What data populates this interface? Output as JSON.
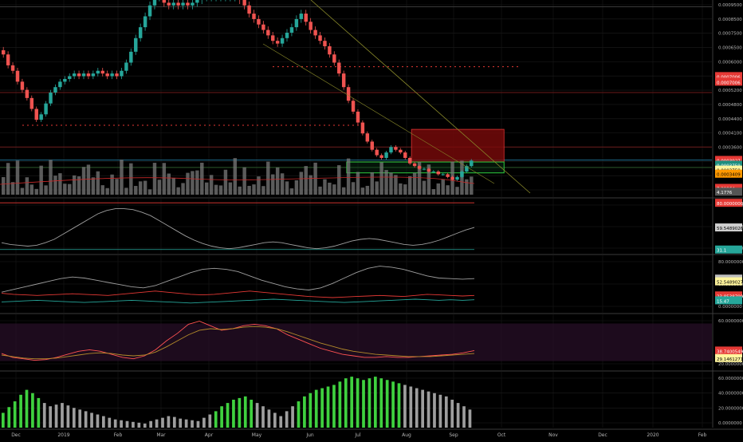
{
  "colors": {
    "background": "#000000",
    "bull": "#26a69a",
    "bear": "#ef5350",
    "grid": "#1c1c1c",
    "volume": "#7a7a7a",
    "divider": "#3a3a3a",
    "axis_text": "#b5b5b5",
    "tag_text": "#000000",
    "tag_text_light": "#ffffff",
    "trendline": "#8a8a2a",
    "resistance_box_fill": "#7a0a0a",
    "resistance_box_border": "#d33",
    "support_box_border": "#2ecc40"
  },
  "chart_data": [
    {
      "name": "price",
      "type": "candlestick",
      "x_tick_labels": [
        "Dec",
        "2019",
        "Feb",
        "Mar",
        "Apr",
        "May",
        "Jun",
        "Jul",
        "Aug",
        "Sep",
        "Oct",
        "Nov",
        "Dec",
        "2020",
        "Feb"
      ],
      "y_tick_labels": [
        "0.0009500",
        "0.0008500",
        "0.0007500",
        "0.0006500",
        "0.0006000",
        "0.0005600",
        "0.0005200",
        "0.0004800",
        "0.0004400",
        "0.0004100",
        "0.0003600",
        "0.0003250",
        "0.0003000",
        "0.0002750"
      ],
      "ylim": [
        0.000265,
        0.00098
      ],
      "price_tags": [
        {
          "value": "0.0007006",
          "y": 0.0007006,
          "bg": "#e53935",
          "fg": "#ffffff"
        },
        {
          "value": "0.0007006",
          "y": 0.00068,
          "bg": "#e53935",
          "fg": "#ffffff"
        },
        {
          "value": "0.0003927",
          "y": 0.0003927,
          "bg": "#e53935",
          "fg": "#ffffff"
        },
        {
          "value": "0.0003759",
          "y": 0.000375,
          "bg": "#1e8e7e",
          "fg": "#ffffff"
        },
        {
          "value": "0.0003759",
          "y": 0.000357,
          "bg": "#fff59d",
          "fg": "#000000"
        },
        {
          "value": "0.0003409",
          "y": 0.000342,
          "bg": "#ff9800",
          "fg": "#000000"
        },
        {
          "value": "7.29964",
          "y": 0.00029,
          "bg": "#e53935",
          "fg": "#ffffff"
        },
        {
          "value": "4.1776",
          "y": 0.000276,
          "bg": "#555555",
          "fg": "#ffffff"
        }
      ],
      "horizontal_levels": [
        {
          "y": 0.000955,
          "style": "solid",
          "color": "#3a3a3a"
        },
        {
          "y": 0.000735,
          "style": "dotted",
          "color": "#e53935"
        },
        {
          "y": 0.00064,
          "style": "solid",
          "color": "#6b1a1a"
        },
        {
          "y": 0.00052,
          "style": "dotted",
          "color": "#e53935"
        },
        {
          "y": 0.00044,
          "style": "solid",
          "color": "#6b1a1a"
        },
        {
          "y": 0.000392,
          "style": "solid",
          "color": "#1e6e8e"
        },
        {
          "y": 0.000365,
          "style": "solid",
          "color": "#2a5a2a"
        }
      ],
      "zones": [
        {
          "kind": "resistance",
          "x_from": 0.578,
          "x_to": 0.708,
          "y_from": 0.000385,
          "y_to": 0.000505
        },
        {
          "kind": "support",
          "x_from": 0.487,
          "x_to": 0.708,
          "y_from": 0.000345,
          "y_to": 0.000385
        }
      ],
      "candles_close_series": [
        0.00078,
        0.00074,
        0.00072,
        0.00068,
        0.00065,
        0.00062,
        0.00058,
        0.00054,
        0.00056,
        0.0006,
        0.00064,
        0.00066,
        0.00068,
        0.00069,
        0.0007,
        0.00071,
        0.0007,
        0.00071,
        0.0007,
        0.00071,
        0.00072,
        0.00071,
        0.0007,
        0.00071,
        0.0007,
        0.00072,
        0.00075,
        0.00079,
        0.00084,
        0.00088,
        0.00092,
        0.00096,
        0.00099,
        0.00099,
        0.00097,
        0.00096,
        0.00097,
        0.00096,
        0.00097,
        0.00096,
        0.00097,
        0.00098,
        0.00099,
        0.00099,
        0.00099,
        0.00099,
        0.00099,
        0.00099,
        0.00099,
        0.00099,
        0.00098,
        0.00096,
        0.00093,
        0.00091,
        0.00089,
        0.00087,
        0.00085,
        0.00083,
        0.00082,
        0.00084,
        0.00086,
        0.00088,
        0.00091,
        0.00093,
        0.0009,
        0.00087,
        0.00085,
        0.00083,
        0.00081,
        0.00078,
        0.00075,
        0.00071,
        0.00066,
        0.00061,
        0.00057,
        0.00053,
        0.00049,
        0.00046,
        0.00043,
        0.00041,
        0.0004,
        0.00042,
        0.00044,
        0.00043,
        0.00042,
        0.0004,
        0.00038,
        0.00037,
        0.00036,
        0.00036,
        0.00035,
        0.00035,
        0.00034,
        0.00034,
        0.00033,
        0.00032,
        0.00033,
        0.00035,
        0.00037,
        0.00039
      ]
    },
    {
      "name": "oscillator-1",
      "type": "line",
      "y_tick_labels": [
        "80.0000000",
        "60.0000000",
        "40.0000000"
      ],
      "ylim": [
        30,
        92
      ],
      "price_tags": [
        {
          "value": "80.0000000",
          "y": 89,
          "bg": "#e53935",
          "fg": "#ffffff"
        },
        {
          "value": "59.5489026",
          "y": 60,
          "bg": "#cfcfcf",
          "fg": "#000000"
        },
        {
          "value": "31.1",
          "y": 34,
          "bg": "#26a69a",
          "fg": "#ffffff"
        }
      ],
      "series": [
        {
          "name": "osc",
          "color": "#9e9e9e",
          "values": [
            42,
            40,
            39,
            38,
            39,
            42,
            46,
            52,
            58,
            64,
            70,
            76,
            80,
            82,
            82,
            81,
            78,
            74,
            68,
            62,
            56,
            50,
            45,
            41,
            38,
            36,
            35,
            36,
            38,
            40,
            42,
            43,
            42,
            40,
            38,
            36,
            35,
            36,
            38,
            41,
            44,
            46,
            47,
            46,
            44,
            42,
            40,
            39,
            40,
            42,
            45,
            49,
            53,
            57,
            60
          ]
        }
      ]
    },
    {
      "name": "oscillator-2",
      "type": "line",
      "y_tick_labels": [
        "80.0000000",
        "60.0000000",
        "0.0000000"
      ],
      "ylim": [
        -5,
        95
      ],
      "price_tags": [
        {
          "value": "55.0127167",
          "y": 55,
          "bg": "#bdbdbd",
          "fg": "#000000"
        },
        {
          "value": "52.5489027",
          "y": 50,
          "bg": "#fff59d",
          "fg": "#000000"
        },
        {
          "value": "23.8538799",
          "y": 24,
          "bg": "#e53935",
          "fg": "#ffffff"
        },
        {
          "value": "15.47",
          "y": 15,
          "bg": "#26a69a",
          "fg": "#ffffff"
        }
      ],
      "series": [
        {
          "name": "a",
          "color": "#9e9e9e",
          "values": [
            30,
            35,
            40,
            45,
            50,
            55,
            58,
            56,
            52,
            48,
            44,
            40,
            38,
            42,
            50,
            58,
            66,
            72,
            74,
            72,
            68,
            60,
            52,
            46,
            40,
            36,
            34,
            38,
            46,
            56,
            66,
            74,
            78,
            76,
            72,
            66,
            60,
            56,
            55,
            54,
            55
          ]
        },
        {
          "name": "b",
          "color": "#e53935",
          "values": [
            28,
            26,
            25,
            24,
            25,
            26,
            27,
            26,
            25,
            24,
            26,
            28,
            30,
            32,
            30,
            28,
            26,
            25,
            26,
            28,
            30,
            32,
            30,
            28,
            26,
            24,
            22,
            21,
            20,
            21,
            22,
            23,
            24,
            23,
            22,
            24,
            26,
            25,
            24,
            23,
            24
          ]
        },
        {
          "name": "c",
          "color": "#26a69a",
          "values": [
            12,
            13,
            14,
            15,
            14,
            13,
            12,
            11,
            12,
            13,
            14,
            15,
            14,
            13,
            12,
            11,
            10,
            11,
            12,
            13,
            14,
            15,
            16,
            17,
            16,
            15,
            14,
            13,
            12,
            11,
            12,
            13,
            14,
            15,
            16,
            17,
            16,
            15,
            16,
            15,
            16
          ]
        }
      ]
    },
    {
      "name": "oscillator-3",
      "type": "line",
      "y_tick_labels": [
        "60.0000000",
        "20.0000000"
      ],
      "ylim": [
        15,
        85
      ],
      "price_tags": [
        {
          "value": "38.7400549",
          "y": 39,
          "bg": "#e53935",
          "fg": "#ffffff"
        },
        {
          "value": "29.1461271",
          "y": 29,
          "bg": "#fff59d",
          "fg": "#000000"
        }
      ],
      "series": [
        {
          "name": "rsi",
          "color": "#ff5252",
          "values": [
            35,
            30,
            28,
            26,
            27,
            30,
            34,
            38,
            40,
            38,
            34,
            30,
            28,
            32,
            40,
            52,
            62,
            74,
            78,
            72,
            66,
            68,
            72,
            74,
            72,
            68,
            60,
            54,
            48,
            42,
            38,
            34,
            32,
            30,
            30,
            31,
            30,
            30,
            31,
            32,
            33,
            34,
            36,
            39
          ]
        },
        {
          "name": "sig",
          "color": "#b38a2a",
          "values": [
            33,
            31,
            29,
            28,
            28,
            29,
            31,
            33,
            35,
            36,
            35,
            33,
            32,
            33,
            37,
            44,
            52,
            60,
            66,
            68,
            67,
            68,
            70,
            71,
            70,
            68,
            64,
            59,
            54,
            49,
            45,
            41,
            38,
            36,
            34,
            33,
            32,
            31,
            31,
            31,
            32,
            33,
            34,
            35
          ]
        }
      ]
    },
    {
      "name": "histogram",
      "type": "bar",
      "y_tick_labels": [
        "60.0000000",
        "40.0000000",
        "20.0000000",
        "0.0000000"
      ],
      "ylim": [
        0,
        66
      ],
      "values": [
        18,
        25,
        32,
        40,
        46,
        42,
        36,
        30,
        26,
        28,
        30,
        27,
        24,
        22,
        20,
        18,
        16,
        14,
        12,
        10,
        9,
        8,
        7,
        6,
        5,
        8,
        10,
        12,
        14,
        13,
        11,
        10,
        9,
        8,
        12,
        16,
        20,
        26,
        30,
        34,
        36,
        38,
        34,
        30,
        26,
        22,
        18,
        14,
        20,
        26,
        32,
        38,
        42,
        46,
        48,
        50,
        52,
        56,
        60,
        62,
        60,
        58,
        60,
        62,
        60,
        58,
        56,
        54,
        52,
        50,
        48,
        46,
        44,
        42,
        40,
        38,
        34,
        30,
        26,
        22
      ],
      "green_indices": [
        0,
        1,
        2,
        3,
        4,
        5,
        6,
        36,
        37,
        38,
        39,
        40,
        41,
        42,
        50,
        51,
        52,
        53,
        54,
        55,
        56,
        57,
        58,
        59,
        60,
        61,
        62,
        63,
        64,
        65,
        66,
        67
      ]
    }
  ]
}
